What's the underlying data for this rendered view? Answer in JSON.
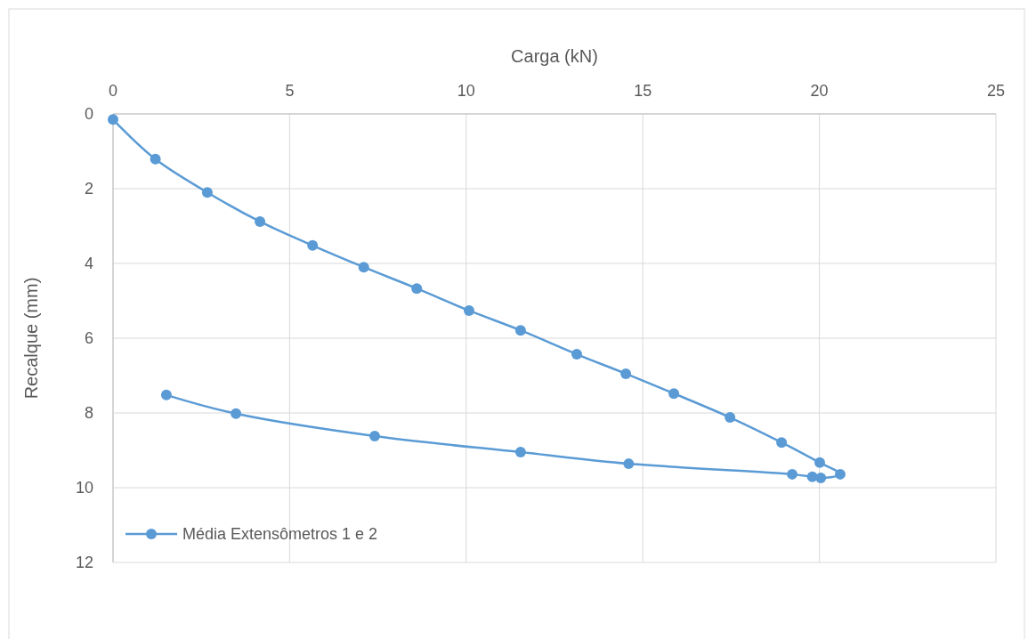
{
  "chart_data": {
    "type": "line",
    "xlabel": "Carga (kN)",
    "ylabel": "Recalque (mm)",
    "xlim": [
      0,
      25
    ],
    "xticks": [
      0,
      5,
      10,
      15,
      20,
      25
    ],
    "ylim": [
      12,
      0
    ],
    "yticks": [
      0,
      2,
      4,
      6,
      8,
      10,
      12
    ],
    "grid": true,
    "legend": "bottom left",
    "marker": "circle",
    "line_style": "solid",
    "series": [
      {
        "name": "Média Extensômetros 1 e 2",
        "color": "#5b9bd5",
        "x": [
          0,
          1.2,
          2.67,
          4.16,
          5.65,
          7.1,
          8.6,
          10.08,
          11.54,
          13.13,
          14.52,
          15.88,
          17.47,
          18.93,
          20.01,
          20.59,
          20.04,
          19.8,
          19.23,
          14.6,
          11.54,
          7.41,
          3.48,
          1.51
        ],
        "values": [
          0.15,
          1.21,
          2.1,
          2.88,
          3.52,
          4.1,
          4.67,
          5.26,
          5.79,
          6.43,
          6.95,
          7.48,
          8.12,
          8.79,
          9.33,
          9.64,
          9.74,
          9.71,
          9.64,
          9.36,
          9.05,
          8.62,
          8.02,
          7.52
        ]
      }
    ]
  }
}
